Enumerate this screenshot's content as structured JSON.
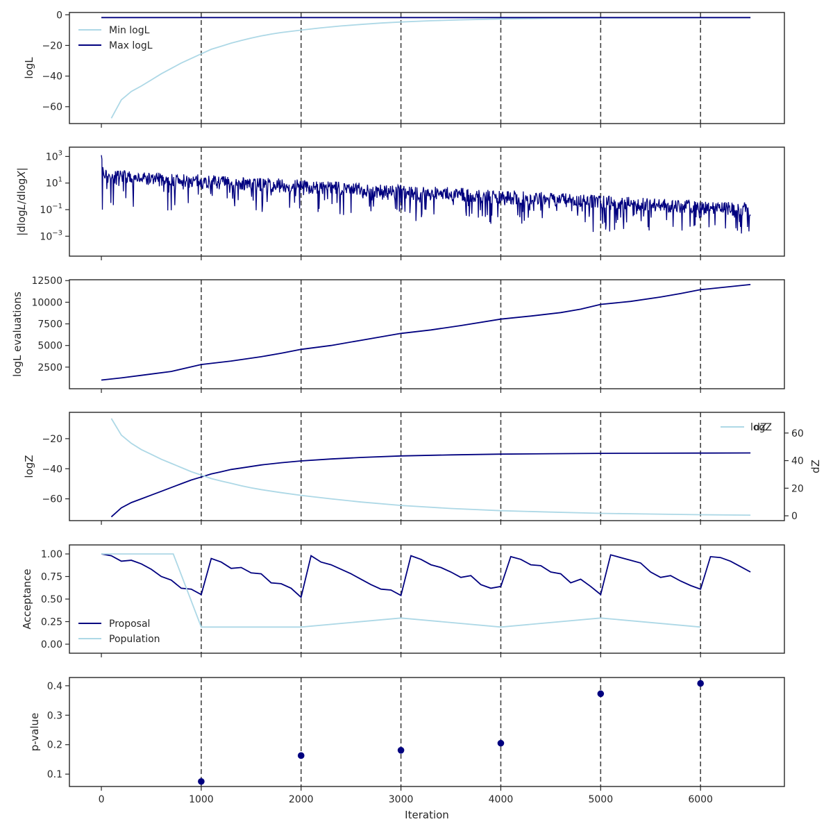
{
  "chart_data": {
    "type": "line",
    "colors": {
      "dark": "#00007f",
      "light": "#add8e6",
      "vline": "#444444"
    },
    "xlabel": "Iteration",
    "x_ticks": [
      0,
      1000,
      2000,
      3000,
      4000,
      5000,
      6000
    ],
    "xlim": [
      -320,
      6840
    ],
    "vlines": [
      1000,
      2000,
      3000,
      4000,
      5000,
      6000
    ],
    "panels": [
      {
        "id": "logl",
        "ylabel": "logL",
        "ylim": [
          -71,
          1.5
        ],
        "yticks": [
          0,
          -20,
          -40,
          -60
        ],
        "ytick_labels": [
          "0",
          "−20",
          "−40",
          "−60"
        ],
        "legend": {
          "position": "upper-left",
          "entries": [
            "Min logL",
            "Max logL"
          ]
        },
        "series": [
          {
            "name": "Min logL",
            "color": "light",
            "x": [
              100,
              200,
              300,
              400,
              500,
              600,
              700,
              800,
              900,
              1000,
              1100,
              1200,
              1300,
              1400,
              1500,
              1600,
              1700,
              1800,
              1900,
              2000,
              2200,
              2400,
              2600,
              2800,
              3000,
              3300,
              3600,
              4000,
              4500,
              5000,
              5500,
              6000,
              6500
            ],
            "y": [
              -67.5,
              -55.5,
              -50,
              -46.5,
              -42.5,
              -38.5,
              -35,
              -31.5,
              -28.5,
              -25.5,
              -22.5,
              -20.5,
              -18.5,
              -16.8,
              -15.2,
              -13.8,
              -12.6,
              -11.6,
              -10.8,
              -10,
              -8.5,
              -7.3,
              -6.3,
              -5.4,
              -4.7,
              -3.9,
              -3.3,
              -2.7,
              -2.3,
              -2.1,
              -2.0,
              -1.95,
              -1.9
            ]
          },
          {
            "name": "Max logL",
            "color": "dark",
            "x": [
              0,
              6500
            ],
            "y": [
              -1.8,
              -1.8
            ]
          }
        ]
      },
      {
        "id": "dlogl",
        "ylabel": "|dlogL/dlogX|",
        "scale": "log",
        "ylim_log10": [
          -4.5,
          3.7
        ],
        "yticks_log10": [
          3,
          1,
          -1,
          -3
        ],
        "ytick_labels": [
          "10^3",
          "10^1",
          "10^-1",
          "10^-3"
        ],
        "series": [
          {
            "name": "",
            "color": "dark",
            "x_start": 0,
            "x_end": 6500,
            "trend_log10": [
              1.5,
              -1.0
            ],
            "spread_log10": 1.4
          }
        ]
      },
      {
        "id": "evals",
        "ylabel": "logL evaluations",
        "ylim": [
          0,
          12600
        ],
        "yticks": [
          2500,
          5000,
          7500,
          10000,
          12500
        ],
        "ytick_labels": [
          "2500",
          "5000",
          "7500",
          "10000",
          "12500"
        ],
        "series": [
          {
            "name": "",
            "color": "dark",
            "x": [
              0,
              200,
              400,
              500,
              700,
              1000,
              1300,
              1600,
              1800,
              2000,
              2300,
              2600,
              3000,
              3300,
              3600,
              4000,
              4300,
              4600,
              4800,
              5000,
              5300,
              5600,
              5800,
              6000,
              6500
            ],
            "y": [
              1000,
              1250,
              1550,
              1700,
              2000,
              2800,
              3200,
              3700,
              4100,
              4550,
              5000,
              5600,
              6400,
              6800,
              7300,
              8050,
              8400,
              8800,
              9200,
              9750,
              10100,
              10600,
              11000,
              11450,
              12050
            ]
          }
        ]
      },
      {
        "id": "logz",
        "ylabel": "logZ",
        "ylim": [
          -74.5,
          -2.5
        ],
        "yticks": [
          -20,
          -40,
          -60
        ],
        "ytick_labels": [
          "−20",
          "−40",
          "−60"
        ],
        "y2label": "dZ",
        "y2lim": [
          -3.5,
          75
        ],
        "y2ticks": [
          0,
          20,
          40,
          60
        ],
        "y2tick_labels": [
          "0",
          "20",
          "40",
          "60"
        ],
        "legend": {
          "position": "upper-right",
          "entries": [
            "logZ",
            "dZ"
          ]
        },
        "series": [
          {
            "name": "logZ",
            "color": "dark",
            "axis": "left",
            "x": [
              100,
              200,
              300,
              400,
              500,
              600,
              700,
              800,
              900,
              1000,
              1100,
              1200,
              1300,
              1400,
              1600,
              1800,
              2000,
              2300,
              2600,
              3000,
              3500,
              4000,
              4500,
              5000,
              5500,
              6000,
              6500
            ],
            "y": [
              -72,
              -66,
              -62.5,
              -60,
              -57.5,
              -55,
              -52.5,
              -50,
              -47.5,
              -45.5,
              -43.5,
              -42,
              -40.5,
              -39.5,
              -37.5,
              -36,
              -34.8,
              -33.5,
              -32.5,
              -31.5,
              -30.8,
              -30.3,
              -30,
              -29.8,
              -29.7,
              -29.6,
              -29.5
            ]
          },
          {
            "name": "dZ",
            "color": "light",
            "axis": "right",
            "x": [
              100,
              200,
              300,
              400,
              500,
              600,
              700,
              800,
              900,
              1000,
              1100,
              1200,
              1300,
              1400,
              1500,
              1600,
              1800,
              2000,
              2300,
              2600,
              3000,
              3500,
              4000,
              4500,
              5000,
              5500,
              6000,
              6500
            ],
            "y": [
              70.5,
              58.5,
              52.5,
              48,
              44.5,
              41,
              38,
              35,
              32,
              29.5,
              27,
              25.2,
              23.5,
              21.8,
              20.3,
              19,
              16.8,
              14.8,
              12.3,
              10,
              7.5,
              5.3,
              3.7,
              2.7,
              1.8,
              1.3,
              0.8,
              0.5
            ]
          }
        ]
      },
      {
        "id": "acceptance",
        "ylabel": "Acceptance",
        "ylim": [
          -0.1,
          1.1
        ],
        "yticks": [
          1.0,
          0.75,
          0.5,
          0.25,
          0.0
        ],
        "ytick_labels": [
          "1.00",
          "0.75",
          "0.50",
          "0.25",
          "0.00"
        ],
        "legend": {
          "position": "lower-left",
          "entries": [
            "Proposal",
            "Population"
          ]
        },
        "series": [
          {
            "name": "Proposal",
            "color": "dark",
            "x": [
              0,
              100,
              200,
              300,
              400,
              500,
              600,
              700,
              800,
              900,
              1000,
              1100,
              1200,
              1300,
              1400,
              1500,
              1600,
              1700,
              1800,
              1900,
              2000,
              2100,
              2200,
              2300,
              2400,
              2500,
              2600,
              2700,
              2800,
              2900,
              3000,
              3100,
              3200,
              3300,
              3400,
              3500,
              3600,
              3700,
              3800,
              3900,
              4000,
              4100,
              4200,
              4300,
              4400,
              4500,
              4600,
              4700,
              4800,
              4900,
              5000,
              5100,
              5200,
              5300,
              5400,
              5500,
              5600,
              5700,
              5800,
              5900,
              6000,
              6100,
              6200,
              6300,
              6400,
              6500
            ],
            "y": [
              1.0,
              0.98,
              0.92,
              0.93,
              0.89,
              0.83,
              0.75,
              0.71,
              0.62,
              0.61,
              0.55,
              0.95,
              0.91,
              0.84,
              0.85,
              0.79,
              0.78,
              0.68,
              0.67,
              0.62,
              0.52,
              0.98,
              0.91,
              0.88,
              0.83,
              0.78,
              0.72,
              0.66,
              0.61,
              0.6,
              0.54,
              0.98,
              0.94,
              0.88,
              0.85,
              0.8,
              0.74,
              0.76,
              0.66,
              0.62,
              0.64,
              0.97,
              0.94,
              0.88,
              0.87,
              0.8,
              0.78,
              0.68,
              0.72,
              0.64,
              0.55,
              0.99,
              0.96,
              0.93,
              0.9,
              0.8,
              0.74,
              0.76,
              0.7,
              0.65,
              0.61,
              0.97,
              0.96,
              0.92,
              0.86,
              0.8
            ]
          },
          {
            "name": "Population",
            "color": "light",
            "x": [
              0,
              720,
              1000,
              2000,
              3000,
              4000,
              5000,
              6000
            ],
            "y": [
              1.0,
              1.0,
              0.19,
              0.19,
              0.29,
              0.19,
              0.29,
              0.19
            ]
          }
        ]
      },
      {
        "id": "pvalue",
        "ylabel": "p-value",
        "ylim": [
          0.058,
          0.428
        ],
        "yticks": [
          0.4,
          0.3,
          0.2,
          0.1
        ],
        "ytick_labels": [
          "0.4",
          "0.3",
          "0.2",
          "0.1"
        ],
        "series": [
          {
            "name": "",
            "type": "scatter",
            "color": "dark",
            "x": [
              1000,
              2000,
              3000,
              4000,
              5000,
              6000
            ],
            "y": [
              0.075,
              0.163,
              0.181,
              0.205,
              0.373,
              0.408
            ]
          }
        ]
      }
    ]
  }
}
